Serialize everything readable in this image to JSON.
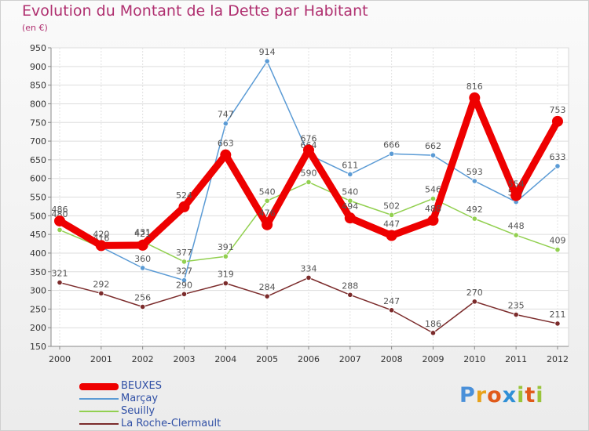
{
  "title": "Evolution du Montant de la Dette par Habitant",
  "subtitle": "(en €)",
  "logo": {
    "letters": [
      "P",
      "r",
      "o",
      "x",
      "i",
      "t",
      "i"
    ],
    "colors": [
      "#4a90d9",
      "#e8a21a",
      "#e05a1a",
      "#2f8fd6",
      "#9ac43a",
      "#e05a1a",
      "#9ac43a"
    ]
  },
  "chart_data": {
    "type": "line",
    "x": [
      "2000",
      "2001",
      "2002",
      "2003",
      "2004",
      "2005",
      "2006",
      "2007",
      "2008",
      "2009",
      "2010",
      "2011",
      "2012"
    ],
    "ylim": [
      150,
      950
    ],
    "yticks": [
      "150",
      "200",
      "250",
      "300",
      "350",
      "400",
      "450",
      "500",
      "550",
      "600",
      "650",
      "700",
      "750",
      "800",
      "850",
      "900",
      "950"
    ],
    "grid": true,
    "legend": "bottom-left",
    "series": [
      {
        "name": "Marçay",
        "color": "#5b9bd5",
        "values": [
          480,
          416,
          360,
          327,
          747,
          914,
          664,
          611,
          666,
          662,
          593,
          537,
          633
        ],
        "labels": [
          "480",
          "416",
          "360",
          "327",
          "747",
          "914",
          "664",
          "611",
          "666",
          "662",
          "593",
          "537",
          "633"
        ]
      },
      {
        "name": "Seuilly",
        "color": "#92d050",
        "values": [
          462,
          415,
          431,
          377,
          391,
          540,
          590,
          540,
          502,
          546,
          492,
          448,
          409
        ],
        "labels": [
          "",
          "",
          "431",
          "377",
          "391",
          "540",
          "590",
          "540",
          "502",
          "546",
          "492",
          "448",
          "409"
        ]
      },
      {
        "name": "La Roche-Clermault",
        "color": "#7b2b2b",
        "values": [
          321,
          292,
          256,
          290,
          319,
          284,
          334,
          288,
          247,
          186,
          270,
          235,
          211
        ],
        "labels": [
          "321",
          "292",
          "256",
          "290",
          "319",
          "284",
          "334",
          "288",
          "247",
          "186",
          "270",
          "235",
          "211"
        ]
      },
      {
        "name": "BEUXES",
        "color": "#ee0000",
        "values": [
          486,
          420,
          421,
          524,
          663,
          476,
          676,
          494,
          447,
          488,
          816,
          554,
          753
        ],
        "labels": [
          "486",
          "420",
          "421",
          "524",
          "663",
          "476",
          "676",
          "494",
          "447",
          "488",
          "816",
          "554",
          "753"
        ]
      }
    ],
    "legend_entries": [
      {
        "name": "BEUXES",
        "color": "#ee0000",
        "width": 9
      },
      {
        "name": "Marçay",
        "color": "#5b9bd5",
        "width": 1.5
      },
      {
        "name": "Seuilly",
        "color": "#92d050",
        "width": 1.5
      },
      {
        "name": "La Roche-Clermault",
        "color": "#7b2b2b",
        "width": 1.5
      }
    ]
  }
}
